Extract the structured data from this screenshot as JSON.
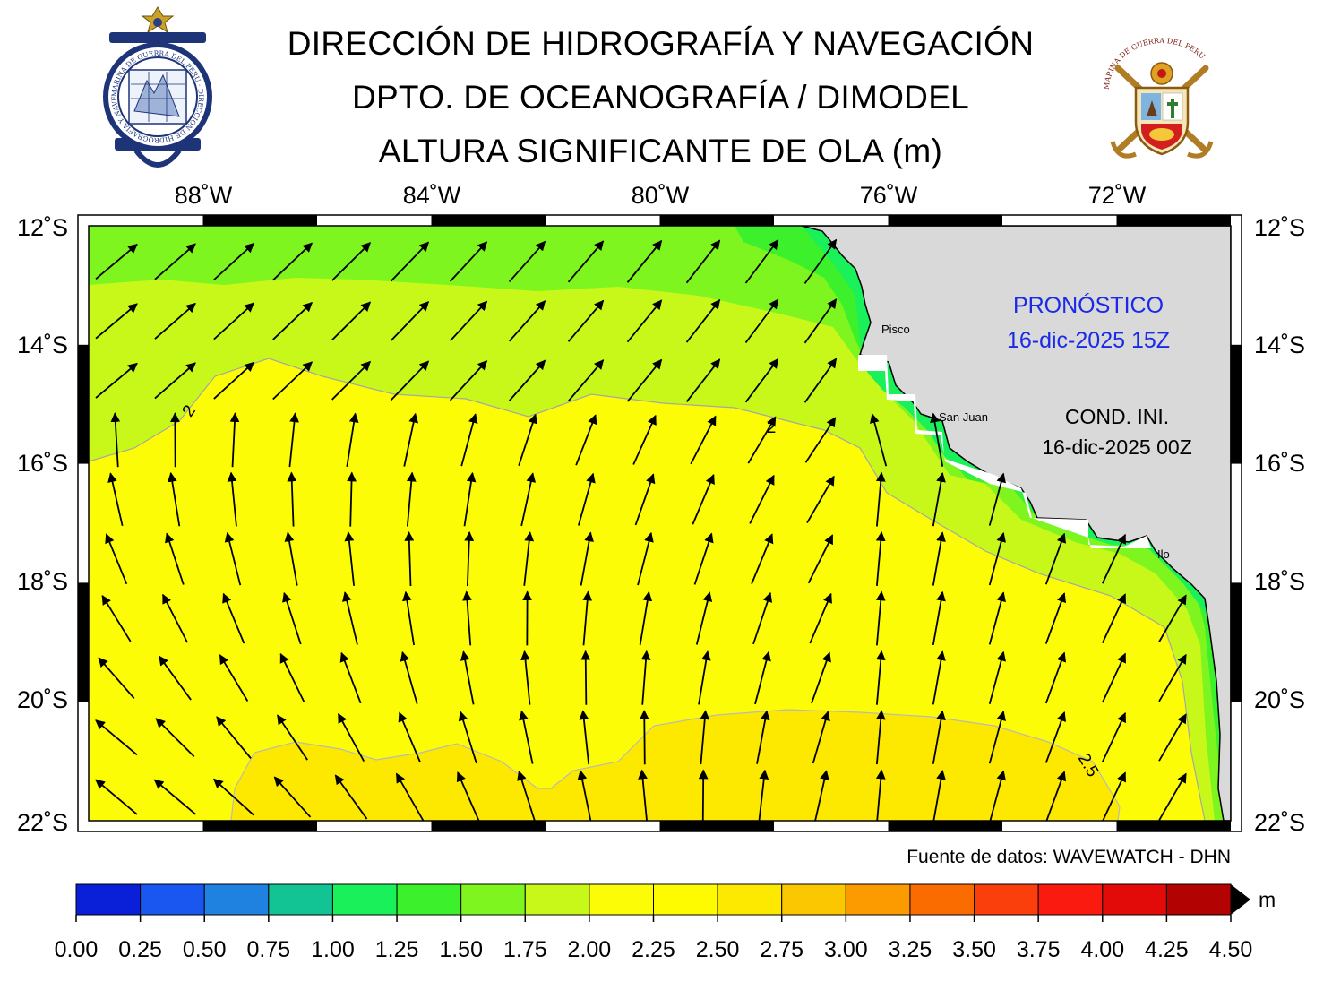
{
  "header": {
    "line1": "DIRECCIÓN DE HIDROGRAFÍA Y NAVEGACIÓN",
    "line2": "DPTO. DE OCEANOGRAFÍA / DIMODEL",
    "line3": "ALTURA SIGNIFICANTE DE OLA (m)"
  },
  "logos": {
    "left_ring_text": "MARINA DE GUERRA DEL PERU · DIRECCION DE HIDROGRAFIA Y NAVEGACION",
    "right_ring_text": "MARINA DE GUERRA DEL PERU"
  },
  "map": {
    "lon_labels": [
      "88˚W",
      "84˚W",
      "80˚W",
      "76˚W",
      "72˚W"
    ],
    "lat_labels_left": [
      "12˚S",
      "14˚S",
      "16˚S",
      "18˚S",
      "20˚S",
      "22˚S"
    ],
    "lat_labels_right": [
      "12˚S",
      "14˚S",
      "16˚S",
      "18˚S",
      "20˚S",
      "22˚S"
    ],
    "cities": [
      "Pisco",
      "San Juan",
      "Ilo"
    ],
    "contour_labels": [
      "2",
      "2",
      "2.5"
    ],
    "forecast_title": "PRONÓSTICO",
    "forecast_time": "16-dic-2025 15Z",
    "init_title": "COND. INI.",
    "init_time": "16-dic-2025 00Z",
    "source": "Fuente de datos: WAVEWATCH - DHN"
  },
  "colorbar": {
    "unit": "m",
    "ticks": [
      "0.00",
      "0.25",
      "0.50",
      "0.75",
      "1.00",
      "1.25",
      "1.50",
      "1.75",
      "2.00",
      "2.25",
      "2.50",
      "2.75",
      "3.00",
      "3.25",
      "3.50",
      "3.75",
      "4.00",
      "4.25",
      "4.50"
    ],
    "colors": [
      "#0a1fd8",
      "#1a56f0",
      "#1f82e0",
      "#12c494",
      "#19f05a",
      "#3cf02c",
      "#7ef51e",
      "#c8f81a",
      "#fcfc06",
      "#fefb00",
      "#fde800",
      "#fbc700",
      "#fb9b00",
      "#fb6c00",
      "#fb3f0c",
      "#fb1a10",
      "#e30a0a",
      "#b20202"
    ]
  },
  "legend_values": {
    "domain_lon": [
      -90,
      -69.4
    ],
    "domain_lat": [
      -22,
      -12
    ]
  }
}
